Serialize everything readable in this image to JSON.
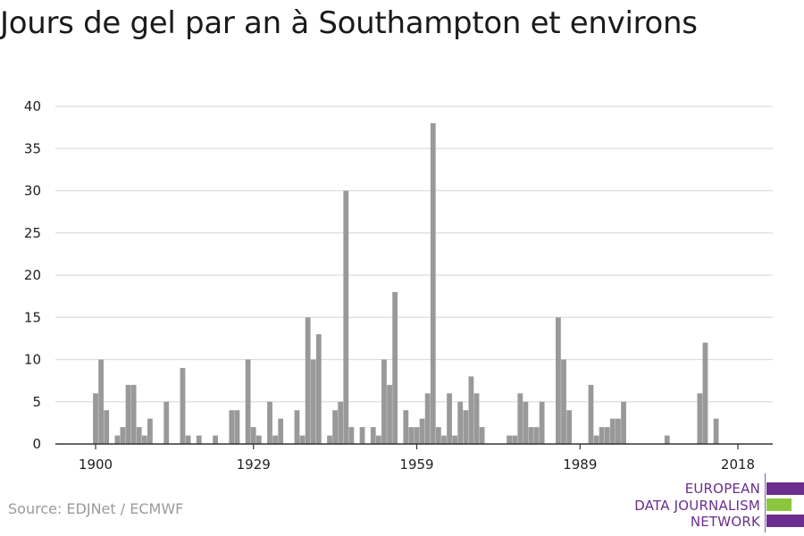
{
  "title": "Jours de gel par an à Southampton et environs",
  "source": "Source: EDJNet / ECMWF",
  "logo": {
    "line1": "EUROPEAN",
    "line2": "DATA JOURNALISM",
    "line3": "NETWORK",
    "colors": [
      "#6b2e8e",
      "#8cc63f",
      "#6b2e8e"
    ]
  },
  "colors": {
    "bar": "#999999",
    "grid": "#dddddd",
    "axis": "#333333",
    "text": "#222222"
  },
  "chart_data": {
    "type": "bar",
    "x": [
      1900,
      1901,
      1902,
      1903,
      1904,
      1905,
      1906,
      1907,
      1908,
      1909,
      1910,
      1911,
      1912,
      1913,
      1914,
      1915,
      1916,
      1917,
      1918,
      1919,
      1920,
      1921,
      1922,
      1923,
      1924,
      1925,
      1926,
      1927,
      1928,
      1929,
      1930,
      1931,
      1932,
      1933,
      1934,
      1935,
      1936,
      1937,
      1938,
      1939,
      1940,
      1941,
      1942,
      1943,
      1944,
      1945,
      1946,
      1947,
      1948,
      1949,
      1950,
      1951,
      1952,
      1953,
      1954,
      1955,
      1956,
      1957,
      1958,
      1959,
      1960,
      1961,
      1962,
      1963,
      1964,
      1965,
      1966,
      1967,
      1968,
      1969,
      1970,
      1971,
      1972,
      1973,
      1974,
      1975,
      1976,
      1977,
      1978,
      1979,
      1980,
      1981,
      1982,
      1983,
      1984,
      1985,
      1986,
      1987,
      1988,
      1989,
      1990,
      1991,
      1992,
      1993,
      1994,
      1995,
      1996,
      1997,
      1998,
      1999,
      2000,
      2001,
      2002,
      2003,
      2004,
      2005,
      2006,
      2007,
      2008,
      2009,
      2010,
      2011,
      2012,
      2013,
      2014,
      2015,
      2016,
      2017,
      2018
    ],
    "values": [
      6,
      10,
      4,
      0,
      1,
      2,
      7,
      7,
      2,
      1,
      3,
      0,
      0,
      5,
      0,
      0,
      9,
      1,
      0,
      1,
      0,
      0,
      1,
      0,
      0,
      4,
      4,
      0,
      10,
      2,
      1,
      0,
      5,
      1,
      3,
      0,
      0,
      4,
      1,
      15,
      10,
      13,
      0,
      1,
      4,
      5,
      30,
      2,
      0,
      2,
      0,
      2,
      1,
      10,
      7,
      18,
      0,
      4,
      2,
      2,
      3,
      6,
      38,
      2,
      1,
      6,
      1,
      5,
      4,
      8,
      6,
      2,
      0,
      0,
      0,
      0,
      1,
      1,
      6,
      5,
      2,
      2,
      5,
      0,
      0,
      15,
      10,
      4,
      0,
      0,
      0,
      7,
      1,
      2,
      2,
      3,
      3,
      5,
      0,
      0,
      0,
      0,
      0,
      0,
      0,
      1,
      0,
      0,
      0,
      0,
      0,
      6,
      12,
      0,
      3,
      0,
      0,
      0,
      0
    ],
    "x_ticks": [
      1900,
      1929,
      1959,
      1989,
      2018
    ],
    "y_ticks": [
      0,
      5,
      10,
      15,
      20,
      25,
      30,
      35,
      40
    ],
    "xlim": [
      1900,
      2018
    ],
    "ylim": [
      0,
      40
    ],
    "grid": "horizontal"
  }
}
